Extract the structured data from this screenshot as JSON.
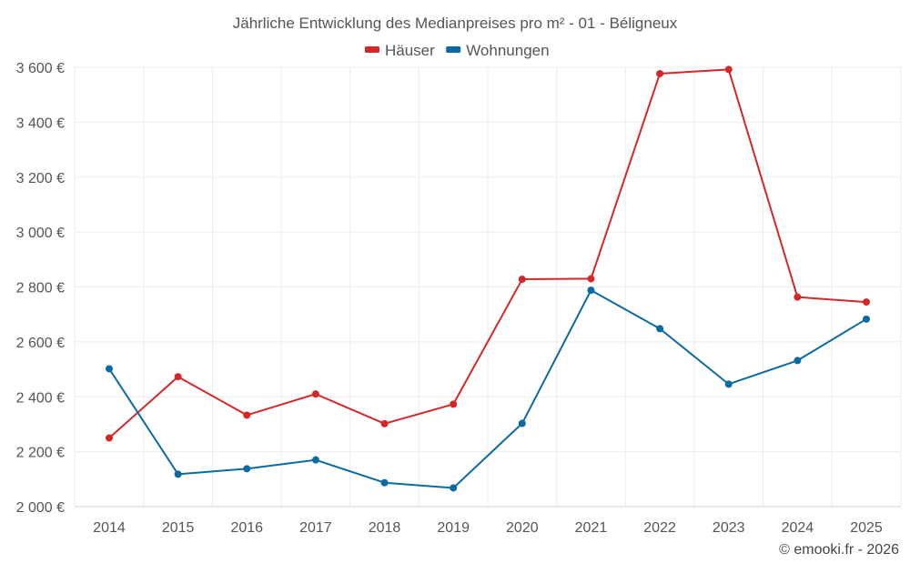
{
  "chart_data": {
    "type": "line",
    "title": "Jährliche Entwicklung des Medianpreises pro m² - 01 - Béligneux",
    "categories": [
      "2014",
      "2015",
      "2016",
      "2017",
      "2018",
      "2019",
      "2020",
      "2021",
      "2022",
      "2023",
      "2024",
      "2025"
    ],
    "series": [
      {
        "name": "Häuser",
        "color": "#d62728",
        "values": [
          2250,
          2473,
          2333,
          2410,
          2302,
          2373,
          2828,
          2830,
          3577,
          3592,
          2763,
          2745
        ]
      },
      {
        "name": "Wohnungen",
        "color": "#0b6aa2",
        "values": [
          2502,
          2118,
          2138,
          2170,
          2087,
          2068,
          2303,
          2788,
          2648,
          2446,
          2532,
          2683
        ]
      }
    ],
    "ylim": [
      2000,
      3600
    ],
    "yticks": [
      2000,
      2200,
      2400,
      2600,
      2800,
      3000,
      3200,
      3400,
      3600
    ],
    "ytick_labels": [
      "2 000 €",
      "2 200 €",
      "2 400 €",
      "2 600 €",
      "2 800 €",
      "3 000 €",
      "3 200 €",
      "3 400 €",
      "3 600 €"
    ],
    "xlabel": "",
    "ylabel": "",
    "grid": true,
    "legend_position": "top-center",
    "credit": "© emooki.fr - 2026"
  }
}
